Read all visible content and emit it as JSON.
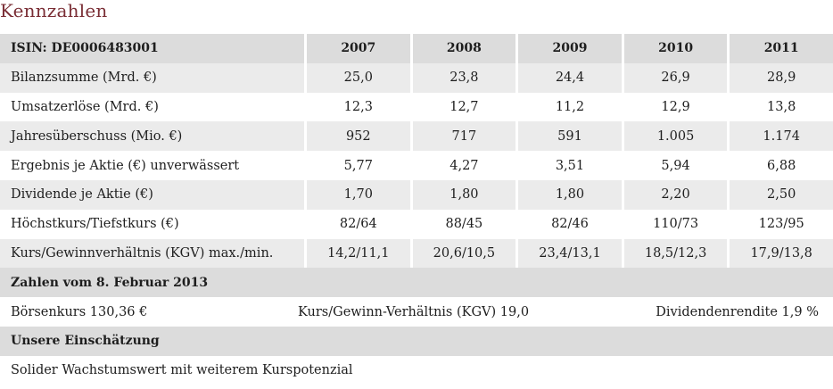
{
  "title": "Kennzahlen",
  "table": {
    "header": [
      "ISIN: DE0006483001",
      "2007",
      "2008",
      "2009",
      "2010",
      "2011"
    ],
    "rows": [
      [
        "Bilanzsumme (Mrd. €)",
        "25,0",
        "23,8",
        "24,4",
        "26,9",
        "28,9"
      ],
      [
        "Umsatzerlöse (Mrd. €)",
        "12,3",
        "12,7",
        "11,2",
        "12,9",
        "13,8"
      ],
      [
        "Jahresüberschuss (Mio. €)",
        "952",
        "717",
        "591",
        "1.005",
        "1.174"
      ],
      [
        "Ergebnis je Aktie (€) unverwässert",
        "5,77",
        "4,27",
        "3,51",
        "5,94",
        "6,88"
      ],
      [
        "Dividende je Aktie (€)",
        "1,70",
        "1,80",
        "1,80",
        "2,20",
        "2,50"
      ],
      [
        "Höchstkurs/Tiefstkurs (€)",
        "82/64",
        "88/45",
        "82/46",
        "110/73",
        "123/95"
      ],
      [
        "Kurs/Gewinnverhältnis (KGV) max./min.",
        "14,2/11,1",
        "20,6/10,5",
        "23,4/13,1",
        "18,5/12,3",
        "17,9/13,8"
      ]
    ]
  },
  "snapshot": {
    "heading": "Zahlen vom 8. Februar 2013",
    "boersenkurs": "Börsenkurs  130,36 €",
    "kgv": "Kurs/Gewinn-Verhältnis (KGV)  19,0",
    "dividendenrendite": "Dividendenrendite  1,9 %"
  },
  "assessment": {
    "heading": "Unsere Einschätzung",
    "text": "Solider Wachstumswert mit weiterem Kurspotenzial"
  }
}
